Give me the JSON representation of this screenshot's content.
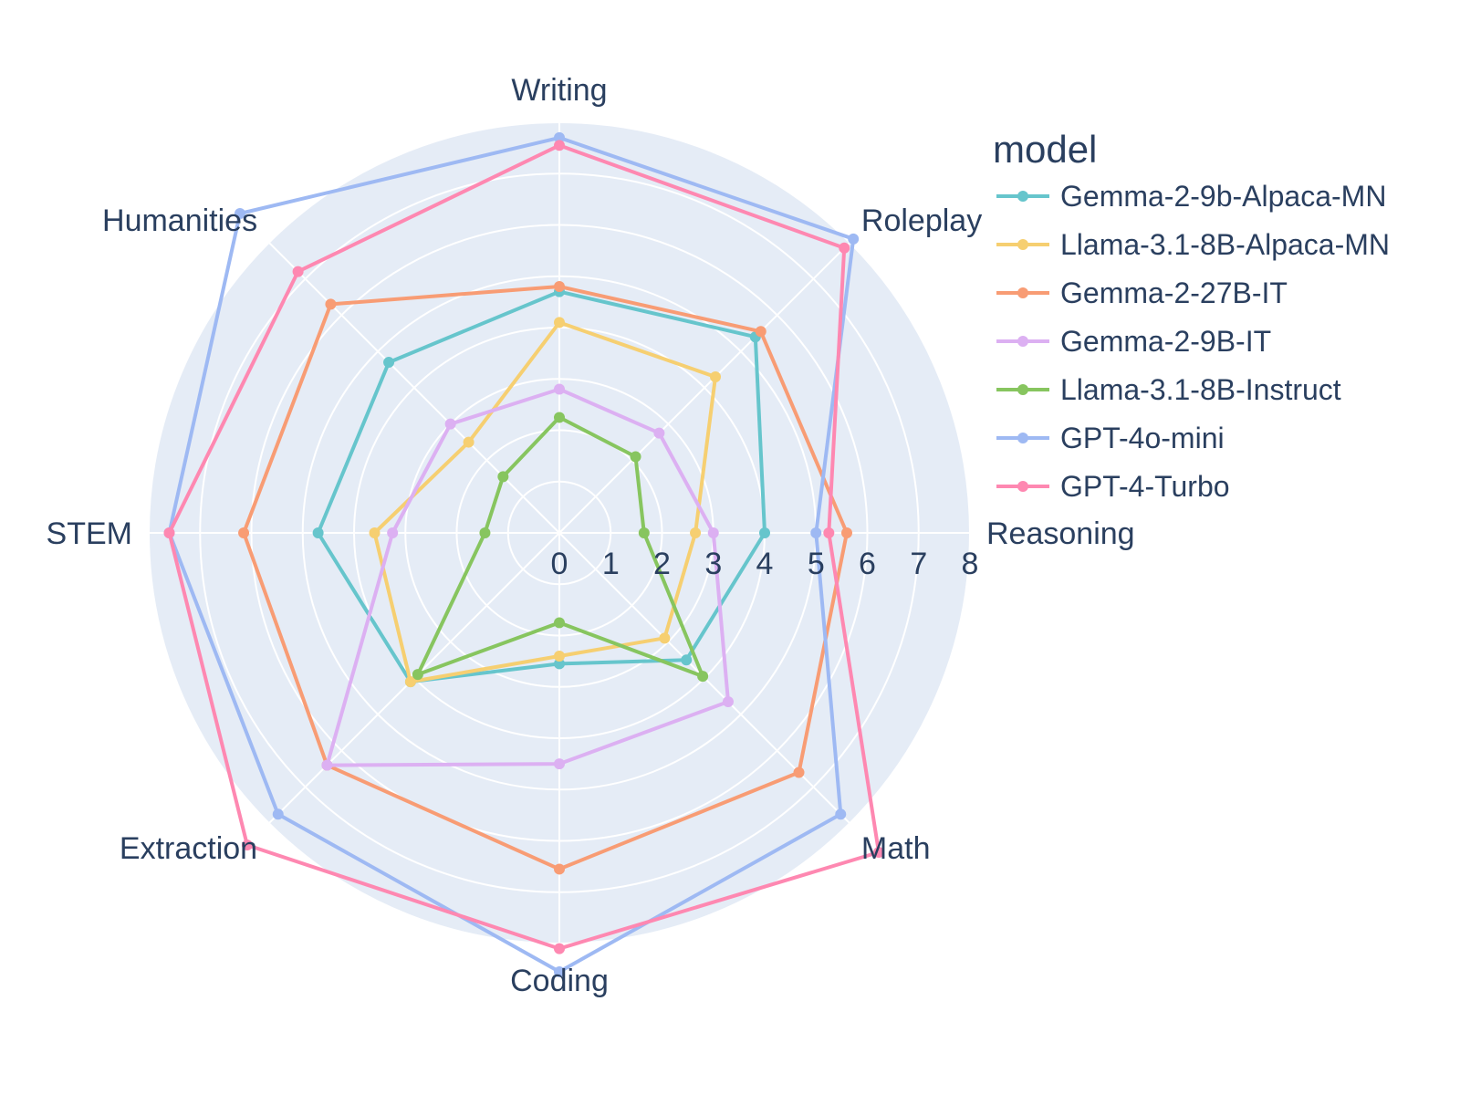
{
  "chart_data": {
    "type": "radar",
    "categories": [
      "Writing",
      "Roleplay",
      "Reasoning",
      "Math",
      "Coding",
      "Extraction",
      "STEM",
      "Humanities"
    ],
    "radial_ticks": [
      "0",
      "1",
      "2",
      "3",
      "4",
      "5",
      "6",
      "7",
      "8"
    ],
    "radial_range": [
      0,
      8
    ],
    "grid": true,
    "legend": {
      "title": "model",
      "placement": "right"
    },
    "series": [
      {
        "name": "Gemma-2-9b-Alpaca-MN",
        "color": "#66c5cc",
        "values": [
          4.7,
          5.4,
          4.0,
          3.5,
          2.55,
          4.1,
          4.7,
          4.7
        ]
      },
      {
        "name": "Llama-3.1-8B-Alpaca-MN",
        "color": "#f6cf71",
        "values": [
          4.1,
          4.3,
          2.65,
          2.9,
          2.4,
          4.1,
          3.6,
          2.5
        ]
      },
      {
        "name": "Gemma-2-27B-IT",
        "color": "#f89c74",
        "values": [
          4.8,
          5.55,
          5.6,
          6.6,
          6.55,
          6.4,
          6.15,
          6.3
        ]
      },
      {
        "name": "Gemma-2-9B-IT",
        "color": "#dcb0f2",
        "values": [
          2.8,
          2.75,
          3.0,
          4.65,
          4.5,
          6.4,
          3.25,
          3.0
        ]
      },
      {
        "name": "Llama-3.1-8B-Instruct",
        "color": "#87c55f",
        "values": [
          2.25,
          2.1,
          1.65,
          3.95,
          1.75,
          3.9,
          1.45,
          1.55
        ]
      },
      {
        "name": "GPT-4o-mini",
        "color": "#9eb9f3",
        "values": [
          7.7,
          8.1,
          5.0,
          7.75,
          8.55,
          7.75,
          7.6,
          8.8
        ]
      },
      {
        "name": "GPT-4-Turbo",
        "color": "#fe88b1",
        "values": [
          7.55,
          7.85,
          5.25,
          8.8,
          8.1,
          8.6,
          7.6,
          7.2
        ]
      }
    ]
  }
}
